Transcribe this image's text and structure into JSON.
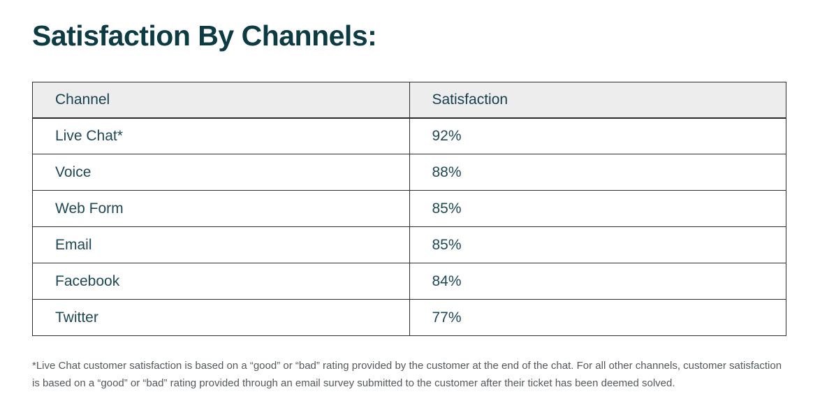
{
  "page": {
    "title": "Satisfaction By Channels:"
  },
  "table": {
    "columns": [
      "Channel",
      "Satisfaction"
    ],
    "rows": [
      {
        "channel": "Live Chat*",
        "satisfaction": "92%"
      },
      {
        "channel": "Voice",
        "satisfaction": "88%"
      },
      {
        "channel": "Web Form",
        "satisfaction": "85%"
      },
      {
        "channel": "Email",
        "satisfaction": "85%"
      },
      {
        "channel": "Facebook",
        "satisfaction": "84%"
      },
      {
        "channel": "Twitter",
        "satisfaction": "77%"
      }
    ]
  },
  "footnote": "*Live Chat customer satisfaction is based on a “good” or “bad” rating provided by the customer at the end of the chat. For all other channels, customer satisfaction is based on a “good” or “bad” rating provided through an email survey submitted to the customer after their ticket has been deemed solved.",
  "colors": {
    "title_text": "#0d3b44",
    "cell_text": "#1e4856",
    "header_text": "#153f4c",
    "header_background": "#ededed",
    "table_border": "#2e2e2e",
    "footnote_text": "#54585b",
    "page_background": "#ffffff"
  },
  "chart_data": {
    "type": "table",
    "title": "Satisfaction By Channels:",
    "columns": [
      "Channel",
      "Satisfaction"
    ],
    "rows": [
      [
        "Live Chat*",
        "92%"
      ],
      [
        "Voice",
        "88%"
      ],
      [
        "Web Form",
        "85%"
      ],
      [
        "Email",
        "85%"
      ],
      [
        "Facebook",
        "84%"
      ],
      [
        "Twitter",
        "77%"
      ]
    ],
    "categories": [
      "Live Chat",
      "Voice",
      "Web Form",
      "Email",
      "Facebook",
      "Twitter"
    ],
    "values": [
      92,
      88,
      85,
      85,
      84,
      77
    ],
    "value_unit": "%"
  }
}
